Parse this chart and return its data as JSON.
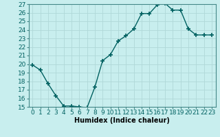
{
  "x": [
    0,
    1,
    2,
    3,
    4,
    5,
    6,
    7,
    8,
    9,
    10,
    11,
    12,
    13,
    14,
    15,
    16,
    17,
    18,
    19,
    20,
    21,
    22,
    23
  ],
  "y": [
    19.9,
    19.3,
    17.7,
    16.3,
    15.1,
    15.1,
    15.0,
    14.9,
    17.3,
    20.4,
    21.1,
    22.7,
    23.3,
    24.1,
    25.9,
    25.9,
    26.9,
    27.1,
    26.3,
    26.3,
    24.1,
    23.4,
    23.4,
    23.4
  ],
  "line_color": "#006060",
  "marker": "+",
  "marker_size": 4,
  "marker_lw": 1.2,
  "bg_color": "#c8eeee",
  "grid_color": "#b0d8d8",
  "xlabel": "Humidex (Indice chaleur)",
  "ylim": [
    15,
    27
  ],
  "xlim": [
    -0.5,
    23.5
  ],
  "yticks": [
    15,
    16,
    17,
    18,
    19,
    20,
    21,
    22,
    23,
    24,
    25,
    26,
    27
  ],
  "xticks": [
    0,
    1,
    2,
    3,
    4,
    5,
    6,
    7,
    8,
    9,
    10,
    11,
    12,
    13,
    14,
    15,
    16,
    17,
    18,
    19,
    20,
    21,
    22,
    23
  ],
  "xtick_labels": [
    "0",
    "1",
    "2",
    "3",
    "4",
    "5",
    "6",
    "7",
    "8",
    "9",
    "10",
    "11",
    "12",
    "13",
    "14",
    "15",
    "16",
    "17",
    "18",
    "19",
    "20",
    "21",
    "22",
    "23"
  ],
  "xlabel_fontsize": 7,
  "tick_fontsize": 6.5,
  "linewidth": 1.0,
  "title": ""
}
